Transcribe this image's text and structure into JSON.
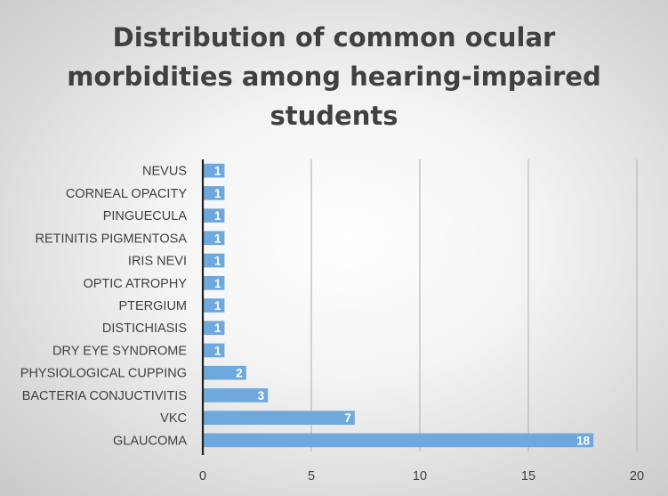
{
  "chart_data": {
    "type": "bar",
    "orientation": "horizontal",
    "title_lines": [
      "Distribution of common ocular",
      "morbidities among hearing-impaired",
      "students"
    ],
    "categories": [
      "NEVUS",
      "CORNEAL OPACITY",
      "PINGUECULA",
      "RETINITIS PIGMENTOSA",
      "IRIS NEVI",
      "OPTIC ATROPHY",
      "PTERGIUM",
      "DISTICHIASIS",
      "DRY EYE SYNDROME",
      "PHYSIOLOGICAL CUPPING",
      "BACTERIA CONJUCTIVITIS",
      "VKC",
      "GLAUCOMA"
    ],
    "values": [
      1,
      1,
      1,
      1,
      1,
      1,
      1,
      1,
      1,
      2,
      3,
      7,
      18
    ],
    "xlim": [
      0,
      20
    ],
    "xticks": [
      0,
      5,
      10,
      15,
      20
    ],
    "grid": "vertical",
    "legend": "none",
    "colors": {
      "bar": "#6fa8dc",
      "grid": "#b8b8b8",
      "axis": "#222222",
      "text": "#404040"
    }
  }
}
